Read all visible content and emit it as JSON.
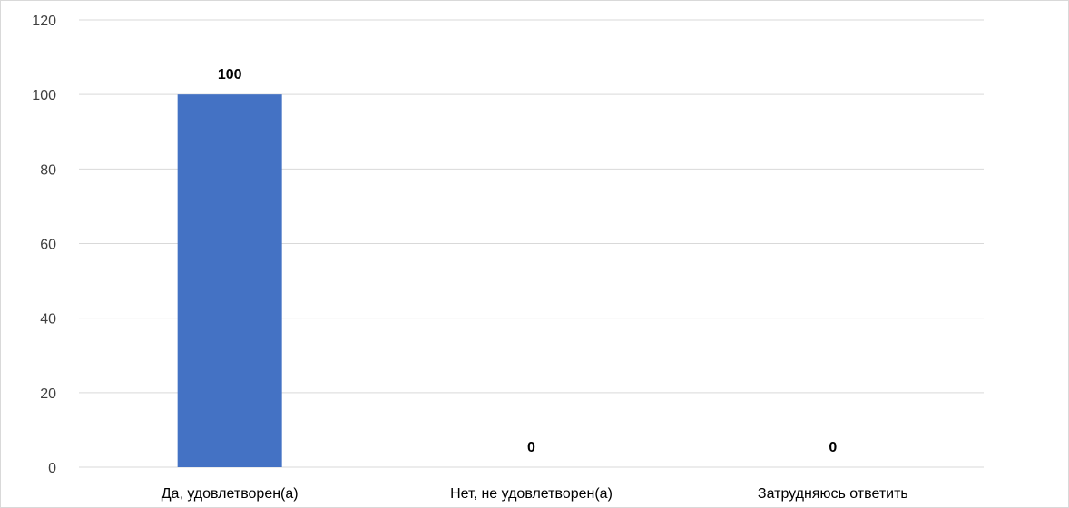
{
  "chart_data": {
    "type": "bar",
    "categories": [
      "Да, удовлетворен(а)",
      "Нет, не удовлетворен(а)",
      "Затрудняюсь ответить"
    ],
    "values": [
      100,
      0,
      0
    ],
    "data_labels": [
      "100",
      "0",
      "0"
    ],
    "title": "",
    "xlabel": "",
    "ylabel": "",
    "ylim": [
      0,
      120
    ],
    "yticks": [
      0,
      20,
      40,
      60,
      80,
      100,
      120
    ],
    "grid": true,
    "legend": "none",
    "bar_color": "#4472C4",
    "grid_color": "#d9d9d9"
  }
}
